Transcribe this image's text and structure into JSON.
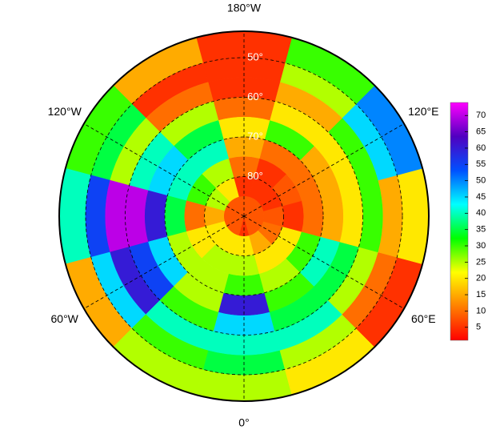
{
  "chart_data": {
    "type": "polar_grid",
    "meridians": [
      {
        "value": 180,
        "label": "180°W"
      },
      {
        "value": -120,
        "label": "120°W"
      },
      {
        "value": 120,
        "label": "120°E"
      },
      {
        "value": -60,
        "label": "60°W"
      },
      {
        "value": 60,
        "label": "60°E"
      },
      {
        "value": 0,
        "label": "0°"
      }
    ],
    "parallels": [
      {
        "value": 50,
        "label": "50°"
      },
      {
        "value": 60,
        "label": "60°"
      },
      {
        "value": 70,
        "label": "70°"
      },
      {
        "value": 80,
        "label": "80°"
      }
    ],
    "lats": [
      45,
      50,
      55,
      60,
      65,
      70,
      75,
      80,
      85
    ],
    "lons": [
      0,
      30,
      60,
      90,
      120,
      150,
      180,
      210,
      240,
      270,
      300,
      330
    ],
    "values": [
      [
        25,
        20,
        5,
        20,
        50,
        30,
        5,
        15,
        30,
        40,
        15,
        25
      ],
      [
        35,
        25,
        10,
        15,
        45,
        25,
        5,
        5,
        35,
        55,
        45,
        30
      ],
      [
        40,
        40,
        25,
        30,
        30,
        15,
        5,
        10,
        25,
        70,
        60,
        40
      ],
      [
        45,
        35,
        35,
        20,
        20,
        20,
        10,
        25,
        40,
        70,
        55,
        30
      ],
      [
        60,
        30,
        40,
        15,
        15,
        30,
        20,
        35,
        45,
        60,
        45,
        25
      ],
      [
        30,
        25,
        30,
        10,
        10,
        10,
        15,
        40,
        40,
        35,
        25,
        25
      ],
      [
        25,
        20,
        20,
        5,
        8,
        5,
        10,
        25,
        30,
        10,
        20,
        25
      ],
      [
        20,
        15,
        10,
        8,
        5,
        5,
        5,
        20,
        25,
        15,
        20,
        20
      ],
      [
        5,
        8,
        8,
        8,
        8,
        8,
        8,
        8,
        8,
        8,
        8,
        8
      ]
    ],
    "clim": [
      1,
      74
    ],
    "colormap": [
      "#ff0000",
      "#ff8000",
      "#ffff00",
      "#00ff00",
      "#00ffff",
      "#0050ff",
      "#5000c0",
      "#ff00ff"
    ],
    "cticks": [
      5,
      10,
      15,
      20,
      25,
      30,
      35,
      40,
      45,
      50,
      55,
      60,
      65,
      70
    ]
  }
}
